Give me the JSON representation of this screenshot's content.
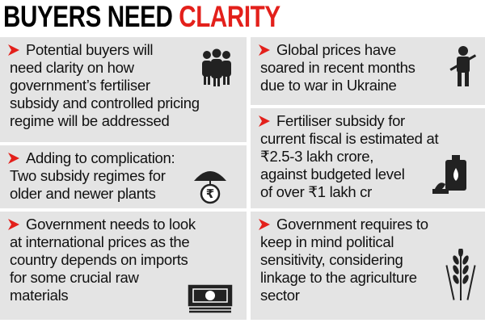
{
  "header": {
    "title": "BUYERS NEED",
    "title_highlight": "CLARITY"
  },
  "panels": [
    {
      "lines": [
        "Potential buyers will",
        "need clarity on how",
        "government’s fertiliser",
        "subsidy and controlled pricing",
        "regime will be addressed"
      ]
    },
    {
      "lines": [
        "Adding to complication:",
        "Two subsidy regimes for",
        "older and newer plants"
      ]
    },
    {
      "lines": [
        "Government needs to look",
        "at international prices as the",
        "country depends on imports",
        "for some crucial raw",
        "materials"
      ]
    },
    {
      "lines": [
        "Global prices have",
        "soared in recent months",
        "due to war in Ukraine"
      ]
    },
    {
      "lines": [
        "Fertiliser subsidy for",
        "current fiscal is estimated at",
        "₹2.5-3 lakh crore,",
        "against budgeted level",
        "of over ₹1 lakh cr"
      ]
    },
    {
      "lines": [
        "Government requires to",
        "keep in mind political",
        "sensitivity, considering",
        "linkage to the agriculture",
        "sector"
      ]
    }
  ]
}
